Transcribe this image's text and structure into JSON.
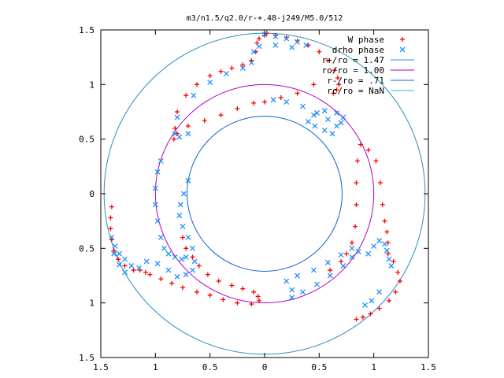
{
  "chart_data": {
    "type": "scatter",
    "title": "m3/n1.5/q2.0/r-+.48-j249/M5.0/512",
    "xlabel": "",
    "ylabel": "",
    "xlim": [
      -1.5,
      1.5
    ],
    "ylim": [
      -1.5,
      1.5
    ],
    "x_tick_labels": [
      "1.5",
      "1",
      "0.5",
      "0",
      "0.5",
      "1",
      "1.5"
    ],
    "x_tick_values": [
      -1.5,
      -1,
      -0.5,
      0,
      0.5,
      1,
      1.5
    ],
    "y_tick_labels": [
      "1.5",
      "1",
      "0.5",
      "0",
      "0.5",
      "1",
      "1.5"
    ],
    "y_tick_values": [
      1.5,
      1,
      0.5,
      0,
      -0.5,
      -1,
      -1.5
    ],
    "grid": false,
    "legend_position": "top-right",
    "series": [
      {
        "name": "W phase",
        "color": "#ff0000",
        "marker": "plus",
        "points": [
          [
            0.02,
            1.47
          ],
          [
            0.1,
            1.45
          ],
          [
            0.2,
            1.43
          ],
          [
            0.3,
            1.4
          ],
          [
            0.4,
            1.36
          ],
          [
            0.5,
            1.3
          ],
          [
            0.58,
            1.22
          ],
          [
            0.64,
            1.13
          ],
          [
            0.67,
            1.06
          ],
          [
            0.68,
            1.0
          ],
          [
            0.66,
            0.95
          ],
          [
            0.63,
            0.92
          ],
          [
            0.45,
            1.0
          ],
          [
            0.3,
            0.92
          ],
          [
            0.15,
            0.88
          ],
          [
            0.0,
            0.84
          ],
          [
            -0.1,
            0.83
          ],
          [
            -0.25,
            0.78
          ],
          [
            -0.4,
            0.72
          ],
          [
            -0.55,
            0.67
          ],
          [
            -0.7,
            0.62
          ],
          [
            -0.8,
            0.55
          ],
          [
            -0.83,
            0.5
          ],
          [
            -0.82,
            0.6
          ],
          [
            -0.8,
            0.75
          ],
          [
            -0.72,
            0.9
          ],
          [
            -0.62,
            1.0
          ],
          [
            -0.5,
            1.08
          ],
          [
            -0.4,
            1.12
          ],
          [
            -0.3,
            1.15
          ],
          [
            -0.2,
            1.18
          ],
          [
            -0.12,
            1.22
          ],
          [
            -0.08,
            1.3
          ],
          [
            -0.07,
            1.38
          ],
          [
            -0.05,
            1.42
          ],
          [
            0.0,
            1.45
          ],
          [
            0.02,
            1.47
          ],
          [
            0.88,
            0.45
          ],
          [
            0.85,
            0.3
          ],
          [
            0.84,
            0.1
          ],
          [
            0.84,
            -0.1
          ],
          [
            0.83,
            -0.3
          ],
          [
            0.8,
            -0.45
          ],
          [
            0.75,
            -0.55
          ],
          [
            0.7,
            -0.62
          ],
          [
            0.6,
            -0.7
          ],
          [
            0.95,
            0.4
          ],
          [
            1.02,
            0.3
          ],
          [
            1.06,
            0.1
          ],
          [
            1.08,
            -0.1
          ],
          [
            1.1,
            -0.25
          ],
          [
            1.12,
            -0.35
          ],
          [
            1.13,
            -0.45
          ],
          [
            1.13,
            -0.55
          ],
          [
            1.18,
            -0.62
          ],
          [
            1.22,
            -0.72
          ],
          [
            1.24,
            -0.8
          ],
          [
            1.2,
            -0.9
          ],
          [
            1.14,
            -0.98
          ],
          [
            1.05,
            -1.05
          ],
          [
            0.97,
            -1.1
          ],
          [
            0.9,
            -1.13
          ],
          [
            0.84,
            -1.15
          ],
          [
            -1.4,
            -0.12
          ],
          [
            -1.41,
            -0.22
          ],
          [
            -1.41,
            -0.32
          ],
          [
            -1.4,
            -0.42
          ],
          [
            -1.38,
            -0.52
          ],
          [
            -1.34,
            -0.6
          ],
          [
            -1.28,
            -0.66
          ],
          [
            -1.2,
            -0.7
          ],
          [
            -1.14,
            -0.7
          ],
          [
            -1.09,
            -0.72
          ],
          [
            -1.05,
            -0.74
          ],
          [
            -0.95,
            -0.78
          ],
          [
            -0.85,
            -0.82
          ],
          [
            -0.75,
            -0.86
          ],
          [
            -0.62,
            -0.9
          ],
          [
            -0.5,
            -0.93
          ],
          [
            -0.38,
            -0.97
          ],
          [
            -0.25,
            -1.0
          ],
          [
            -0.12,
            -1.01
          ],
          [
            -0.05,
            -0.98
          ],
          [
            -0.06,
            -0.94
          ],
          [
            -0.1,
            -0.9
          ],
          [
            -0.2,
            -0.87
          ],
          [
            -0.3,
            -0.84
          ],
          [
            -0.42,
            -0.8
          ],
          [
            -0.52,
            -0.74
          ],
          [
            -0.6,
            -0.66
          ],
          [
            -0.66,
            -0.58
          ],
          [
            -0.72,
            -0.5
          ],
          [
            -0.75,
            -0.4
          ]
        ]
      },
      {
        "name": "drho phase",
        "color": "#2090ff",
        "marker": "x",
        "points": [
          [
            0.0,
            1.46
          ],
          [
            0.1,
            1.44
          ],
          [
            0.2,
            1.42
          ],
          [
            0.3,
            1.39
          ],
          [
            0.38,
            1.36
          ],
          [
            0.25,
            1.34
          ],
          [
            0.1,
            1.36
          ],
          [
            -0.05,
            1.35
          ],
          [
            -0.1,
            1.3
          ],
          [
            -0.12,
            1.2
          ],
          [
            -0.2,
            1.15
          ],
          [
            -0.35,
            1.1
          ],
          [
            -0.5,
            1.02
          ],
          [
            -0.65,
            0.9
          ],
          [
            -0.8,
            0.7
          ],
          [
            -0.82,
            0.55
          ],
          [
            -0.78,
            0.52
          ],
          [
            -0.7,
            0.55
          ],
          [
            0.08,
            0.86
          ],
          [
            0.2,
            0.84
          ],
          [
            0.35,
            0.8
          ],
          [
            0.48,
            0.74
          ],
          [
            0.58,
            0.68
          ],
          [
            0.66,
            0.62
          ],
          [
            0.7,
            0.65
          ],
          [
            0.72,
            0.7
          ],
          [
            0.66,
            0.74
          ],
          [
            0.55,
            0.76
          ],
          [
            0.45,
            0.72
          ],
          [
            0.4,
            0.66
          ],
          [
            0.46,
            0.62
          ],
          [
            0.55,
            0.58
          ],
          [
            0.62,
            0.55
          ],
          [
            -0.95,
            0.3
          ],
          [
            -0.98,
            0.2
          ],
          [
            -1.0,
            0.05
          ],
          [
            -1.0,
            -0.1
          ],
          [
            -0.98,
            -0.25
          ],
          [
            -0.95,
            -0.4
          ],
          [
            -0.92,
            -0.5
          ],
          [
            -0.88,
            -0.55
          ],
          [
            -0.82,
            -0.58
          ],
          [
            -0.76,
            -0.6
          ],
          [
            -0.72,
            -0.58
          ],
          [
            -0.7,
            0.12
          ],
          [
            -0.74,
            0.0
          ],
          [
            -0.77,
            -0.1
          ],
          [
            -0.78,
            -0.2
          ],
          [
            -0.75,
            -0.3
          ],
          [
            -0.7,
            -0.4
          ],
          [
            -0.66,
            -0.5
          ],
          [
            -0.64,
            -0.62
          ],
          [
            -0.66,
            -0.7
          ],
          [
            -0.72,
            -0.74
          ],
          [
            -0.8,
            -0.76
          ],
          [
            -0.88,
            -0.7
          ],
          [
            -0.98,
            -0.64
          ],
          [
            -1.08,
            -0.62
          ],
          [
            -1.15,
            -0.68
          ],
          [
            -1.22,
            -0.66
          ],
          [
            -1.28,
            -0.6
          ],
          [
            -1.33,
            -0.55
          ],
          [
            -1.37,
            -0.48
          ],
          [
            -1.4,
            -0.4
          ],
          [
            -1.38,
            -0.55
          ],
          [
            -1.33,
            -0.65
          ],
          [
            -1.28,
            -0.72
          ],
          [
            0.95,
            -0.55
          ],
          [
            1.0,
            -0.48
          ],
          [
            1.05,
            -0.43
          ],
          [
            1.1,
            -0.46
          ],
          [
            1.12,
            -0.52
          ],
          [
            1.14,
            -0.6
          ],
          [
            1.16,
            -0.66
          ],
          [
            0.25,
            -0.95
          ],
          [
            0.35,
            -0.9
          ],
          [
            0.48,
            -0.83
          ],
          [
            0.6,
            -0.75
          ],
          [
            0.72,
            -0.66
          ],
          [
            0.8,
            -0.58
          ],
          [
            0.86,
            -0.53
          ],
          [
            0.8,
            -0.5
          ],
          [
            0.7,
            -0.56
          ],
          [
            0.58,
            -0.63
          ],
          [
            0.45,
            -0.7
          ],
          [
            0.3,
            -0.75
          ],
          [
            0.2,
            -0.8
          ],
          [
            0.25,
            -0.88
          ],
          [
            1.05,
            -0.9
          ],
          [
            0.98,
            -0.98
          ],
          [
            0.92,
            -1.02
          ]
        ]
      }
    ],
    "circles": [
      {
        "name": "r+/ro = 1.47",
        "radius": 1.47,
        "color": "#2a8fc0"
      },
      {
        "name": "ro/ro = 1.00",
        "radius": 1.0,
        "color": "#b000c0"
      },
      {
        "name": "r-/ro = .71",
        "radius": 0.71,
        "color": "#1060d0"
      },
      {
        "name": "rc/ro = NaN",
        "radius": null,
        "color": "#20c0e0"
      }
    ]
  }
}
